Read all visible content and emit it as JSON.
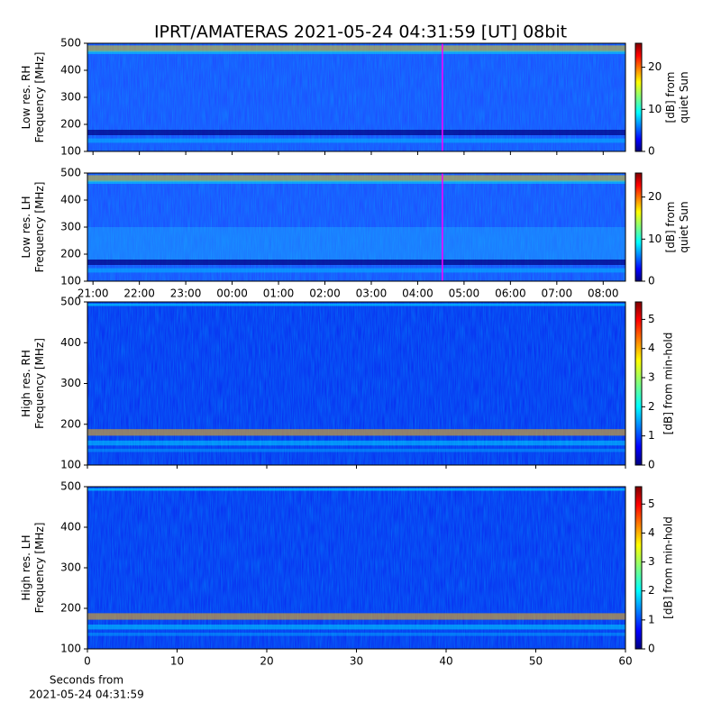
{
  "chart_data": [
    {
      "type": "heatmap",
      "title": "IPRT/AMATERAS 2021-05-24 04:31:59 [UT]   08bit",
      "ylabel": [
        "Low res. RH",
        "Frequency [MHz]"
      ],
      "ylim": [
        100,
        500
      ],
      "yticks": [
        100,
        200,
        300,
        400,
        500
      ],
      "xlim": [
        20.88,
        32.48
      ],
      "xticks": [
        {
          "value": 21,
          "label": "21:00"
        },
        {
          "value": 22,
          "label": "22:00"
        },
        {
          "value": 23,
          "label": "23:00"
        },
        {
          "value": 24,
          "label": "00:00"
        },
        {
          "value": 25,
          "label": "01:00"
        },
        {
          "value": 26,
          "label": "02:00"
        },
        {
          "value": 27,
          "label": "03:00"
        },
        {
          "value": 28,
          "label": "04:00"
        },
        {
          "value": 29,
          "label": "05:00"
        },
        {
          "value": 30,
          "label": "06:00"
        },
        {
          "value": 31,
          "label": "07:00"
        },
        {
          "value": 32,
          "label": "08:00"
        }
      ],
      "show_xtick_labels": false,
      "marker_x": 28.533,
      "marker_color": "#ff00ff",
      "clim": [
        0,
        25.7
      ],
      "cticks": [
        0,
        10,
        20
      ],
      "clabel": [
        "[dB] from",
        "quiet Sun"
      ],
      "colormap": "jet"
    },
    {
      "type": "heatmap",
      "ylabel": [
        "Low res. LH",
        "Frequency [MHz]"
      ],
      "ylim": [
        100,
        500
      ],
      "yticks": [
        100,
        200,
        300,
        400,
        500
      ],
      "xlim": [
        20.88,
        32.48
      ],
      "xticks": [
        {
          "value": 21,
          "label": "21:00"
        },
        {
          "value": 22,
          "label": "22:00"
        },
        {
          "value": 23,
          "label": "23:00"
        },
        {
          "value": 24,
          "label": "00:00"
        },
        {
          "value": 25,
          "label": "01:00"
        },
        {
          "value": 26,
          "label": "02:00"
        },
        {
          "value": 27,
          "label": "03:00"
        },
        {
          "value": 28,
          "label": "04:00"
        },
        {
          "value": 29,
          "label": "05:00"
        },
        {
          "value": 30,
          "label": "06:00"
        },
        {
          "value": 31,
          "label": "07:00"
        },
        {
          "value": 32,
          "label": "08:00"
        }
      ],
      "show_xtick_labels": true,
      "marker_x": 28.533,
      "marker_color": "#ff00ff",
      "clim": [
        0,
        25.7
      ],
      "cticks": [
        0,
        10,
        20
      ],
      "clabel": [
        "[dB] from",
        "quiet Sun"
      ],
      "colormap": "jet"
    },
    {
      "type": "heatmap",
      "ylabel": [
        "High res. RH",
        "Frequency [MHz]"
      ],
      "ylim": [
        100,
        500
      ],
      "yticks": [
        100,
        200,
        300,
        400,
        500
      ],
      "xlim": [
        0,
        60
      ],
      "xticks": [
        0,
        10,
        20,
        30,
        40,
        50,
        60
      ],
      "show_xtick_labels": false,
      "clim": [
        0,
        5.6
      ],
      "cticks": [
        0,
        1,
        2,
        3,
        4,
        5
      ],
      "clabel": [
        "[dB] from min-hold"
      ],
      "colormap": "jet"
    },
    {
      "type": "heatmap",
      "ylabel": [
        "High res. LH",
        "Frequency [MHz]"
      ],
      "ylim": [
        100,
        500
      ],
      "yticks": [
        100,
        200,
        300,
        400,
        500
      ],
      "xlim": [
        0,
        60
      ],
      "xticks": [
        0,
        10,
        20,
        30,
        40,
        50,
        60
      ],
      "show_xtick_labels": true,
      "xlabel": [
        "Seconds from",
        "2021-05-24 04:31:59"
      ],
      "clim": [
        0,
        5.6
      ],
      "cticks": [
        0,
        1,
        2,
        3,
        4,
        5
      ],
      "clabel": [
        "[dB] from min-hold"
      ],
      "colormap": "jet"
    }
  ]
}
